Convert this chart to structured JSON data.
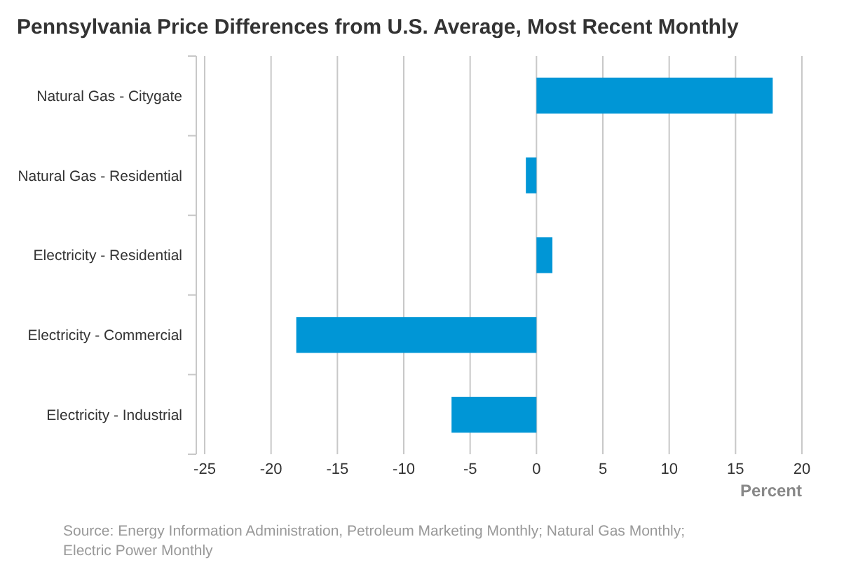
{
  "chart_data": {
    "type": "bar",
    "orientation": "horizontal",
    "title": "Pennsylvania Price Differences from U.S. Average, Most Recent Monthly",
    "xlabel": "Percent",
    "categories": [
      "Natural Gas - Citygate",
      "Natural Gas - Residential",
      "Electricity - Residential",
      "Electricity - Commercial",
      "Electricity - Industrial"
    ],
    "values": [
      17.8,
      -0.8,
      1.2,
      -18.1,
      -6.4
    ],
    "color": "#0096d6",
    "xlim": [
      -25,
      20
    ],
    "xticks": [
      -25,
      -20,
      -15,
      -10,
      -5,
      0,
      5,
      10,
      15,
      20
    ],
    "grid": "x",
    "annotations": [
      "Source: Energy Information Administration, Petroleum Marketing Monthly; Natural Gas Monthly;\nElectric Power Monthly"
    ]
  }
}
